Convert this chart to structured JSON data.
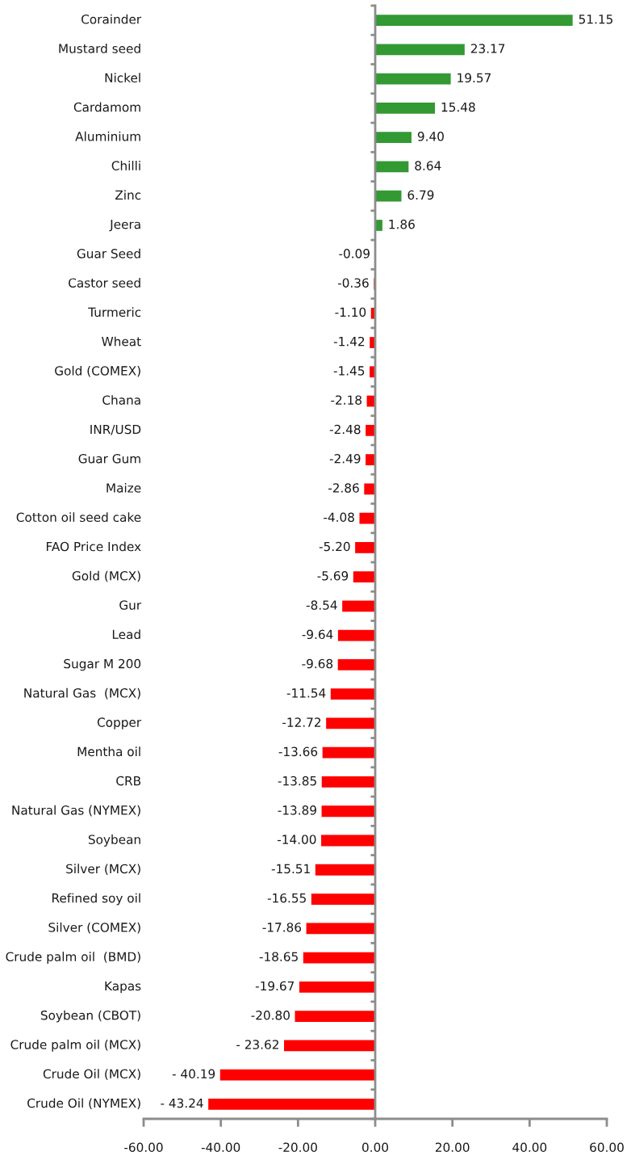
{
  "chart_data": {
    "type": "bar",
    "orientation": "horizontal",
    "categories": [
      "Corainder",
      "Mustard seed",
      "Nickel",
      "Cardamom",
      "Aluminium",
      "Chilli",
      "Zinc",
      "Jeera",
      "Guar Seed",
      "Castor seed",
      "Turmeric",
      "Wheat",
      "Gold (COMEX)",
      "Chana",
      "INR/USD",
      "Guar Gum",
      "Maize",
      "Cotton oil seed cake",
      "FAO Price Index",
      "Gold (MCX)",
      "Gur",
      "Lead",
      "Sugar M 200",
      "Natural Gas  (MCX)",
      "Copper",
      "Mentha oil",
      "CRB",
      "Natural Gas (NYMEX)",
      "Soybean",
      "Silver (MCX)",
      "Refined soy oil",
      "Silver (COMEX)",
      "Crude palm oil  (BMD)",
      "Kapas",
      "Soybean (CBOT)",
      "Crude palm oil (MCX)",
      "Crude Oil (MCX)",
      "Crude Oil (NYMEX)"
    ],
    "values": [
      51.15,
      23.17,
      19.57,
      15.48,
      9.4,
      8.64,
      6.79,
      1.86,
      -0.09,
      -0.36,
      -1.1,
      -1.42,
      -1.45,
      -2.18,
      -2.48,
      -2.49,
      -2.86,
      -4.08,
      -5.2,
      -5.69,
      -8.54,
      -9.64,
      -9.68,
      -11.54,
      -12.72,
      -13.66,
      -13.85,
      -13.89,
      -14.0,
      -15.51,
      -16.55,
      -17.86,
      -18.65,
      -19.67,
      -20.8,
      -23.62,
      -40.19,
      -43.24
    ],
    "value_labels": [
      "51.15",
      "23.17",
      "19.57",
      "15.48",
      "9.40",
      "8.64",
      "6.79",
      "1.86",
      "-0.09",
      "-0.36",
      "-1.10",
      "-1.42",
      "-1.45",
      "-2.18",
      "-2.48",
      "-2.49",
      "-2.86",
      "-4.08",
      "-5.20",
      "-5.69",
      "-8.54",
      "-9.64",
      "-9.68",
      "-11.54",
      "-12.72",
      "-13.66",
      "-13.85",
      "-13.89",
      "-14.00",
      "-15.51",
      "-16.55",
      "-17.86",
      "-18.65",
      "-19.67",
      "-20.80",
      "- 23.62",
      "- 40.19",
      "- 43.24"
    ],
    "colors": [
      "#339933",
      "#339933",
      "#339933",
      "#339933",
      "#339933",
      "#339933",
      "#339933",
      "#339933",
      "#ff0000",
      "#ff0000",
      "#ff0000",
      "#ff0000",
      "#ff0000",
      "#ff0000",
      "#ff0000",
      "#ff0000",
      "#ff0000",
      "#ff0000",
      "#ff0000",
      "#ff0000",
      "#ff0000",
      "#ff0000",
      "#ff0000",
      "#ff0000",
      "#ff0000",
      "#ff0000",
      "#ff0000",
      "#ff0000",
      "#ff0000",
      "#ff0000",
      "#ff0000",
      "#ff0000",
      "#ff0000",
      "#ff0000",
      "#ff0000",
      "#ff0000",
      "#ff0000",
      "#ff0000"
    ],
    "xlim": [
      -60,
      60
    ],
    "xticks": [
      {
        "value": -60,
        "label": "-60.00"
      },
      {
        "value": -40,
        "label": "-40.00"
      },
      {
        "value": -20,
        "label": "-20.00"
      },
      {
        "value": 0,
        "label": "0.00"
      },
      {
        "value": 20,
        "label": "20.00"
      },
      {
        "value": 40,
        "label": "40.00"
      },
      {
        "value": 60,
        "label": "60.00"
      }
    ]
  }
}
